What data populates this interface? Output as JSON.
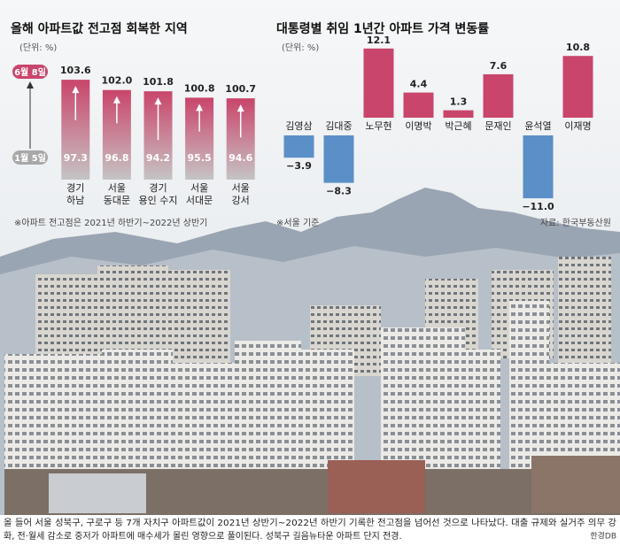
{
  "chart_data": [
    {
      "type": "range-bar",
      "title": "올해 아파트값 전고점 회복한 지역",
      "unit": "(단위: %)",
      "categories": [
        [
          "경기",
          "하남"
        ],
        [
          "서울",
          "동대문"
        ],
        [
          "경기",
          "용인 수지"
        ],
        [
          "서울",
          "서대문"
        ],
        [
          "서울",
          "강서"
        ]
      ],
      "series": [
        {
          "name": "1월 5일",
          "color": "#a8a8a8",
          "values": [
            97.3,
            96.8,
            94.2,
            95.5,
            94.6
          ],
          "value_labels": [
            "97.3",
            "96.8",
            "94.2",
            "95.5",
            "94.6"
          ]
        },
        {
          "name": "6월 8일",
          "color": "#c9456b",
          "values": [
            103.6,
            102.0,
            101.8,
            100.8,
            100.7
          ],
          "value_labels": [
            "103.6",
            "102.0",
            "101.8",
            "100.8",
            "100.7"
          ]
        }
      ],
      "ylim": [
        88,
        105
      ],
      "note": "※아파트 전고점은 2021년 하반기~2022년 상반기"
    },
    {
      "type": "bar",
      "title": "대통령별 취임 1년간 아파트 가격 변동률",
      "unit": "(단위: %)",
      "categories": [
        "김영삼",
        "김대중",
        "노무현",
        "이명박",
        "박근혜",
        "문재인",
        "윤석열",
        "이재명"
      ],
      "values": [
        -3.9,
        -8.3,
        12.1,
        4.4,
        1.3,
        7.6,
        -11.0,
        10.8
      ],
      "value_labels": [
        "−3.9",
        "−8.3",
        "12.1",
        "4.4",
        "1.3",
        "7.6",
        "−11.0",
        "10.8"
      ],
      "positive_color": "#c9456b",
      "negative_color": "#5b8fc7",
      "ylim": [
        -12,
        13
      ],
      "note": "※서울 기준",
      "source": "자료: 한국부동산원"
    }
  ],
  "photo": {
    "caption": [
      "올 들어 서울 성북구, 구로구 등 7개 자치구 아파트값이 2021년 상반기~2022년 하반기 기록한 전고점을 넘어선 것으로 나타났다. 대출 규제와 실거주 의무 강",
      "화, 전·월세 감소로 중저가 아파트에 매수세가 몰린 영향으로 풀이된다. 성북구 길음뉴타운 아파트 단지 전경."
    ],
    "credit": "한경DB"
  }
}
